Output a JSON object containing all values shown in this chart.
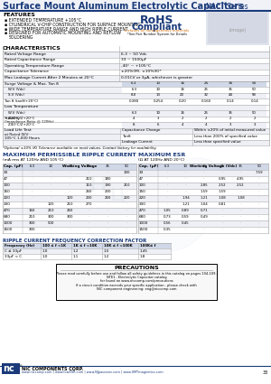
{
  "title": "Surface Mount Aluminum Electrolytic Capacitors",
  "series": "NACT Series",
  "bg_color": "#ffffff",
  "dark_blue": "#1a3a7a",
  "features_title": "FEATURES",
  "features": [
    "EXTENDED TEMPERATURE +105°C",
    "CYLINDRICAL V-CHIP CONSTRUCTION FOR SURFACE MOUNTING",
    "WIDE TEMPERATURE RANGE AND HIGH RIPPLE CURRENT",
    "DESIGNED FOR AUTOMATIC MOUNTING AND REFLOW",
    "SOLDERING"
  ],
  "rohs_line1": "RoHS",
  "rohs_line2": "Compliant",
  "rohs_sub1": "Includes all homogeneous materials",
  "rohs_sub2": "*See Part Number System for Details",
  "char_title": "CHARACTERISTICS",
  "char_rows": [
    [
      "Rated Voltage Range",
      "6.3 ~ 50 Vdc"
    ],
    [
      "Rated Capacitance Range",
      "33 ~ 1500μF"
    ],
    [
      "Operating Temperature Range",
      "-40° ~ +105°C"
    ],
    [
      "Capacitance Tolerance",
      "±20%(M), ±10%(K)*"
    ],
    [
      "Max Leakage Current After 2 Minutes at 20°C",
      "0.01CV or 3μA, whichever is greater"
    ]
  ],
  "surge_label": "Surge Voltage & Max. Tan δ",
  "wv_label": "W.V (Vdc)",
  "sv_label": "S.V (Vdc)",
  "tand_label": "Tan δ (tanδ/+20°C)",
  "voltage_cols": [
    "6.3",
    "10",
    "16",
    "25",
    "35",
    "50"
  ],
  "wv_vals": [
    "6.3",
    "10",
    "16",
    "25",
    "35",
    "50"
  ],
  "sv_vals": [
    "8.0",
    "13",
    "20",
    "32",
    "44",
    "58"
  ],
  "tand_vals": [
    "0.380",
    "0.254",
    "0.20",
    "0.160",
    "0.14",
    "0.14"
  ],
  "low_temp_label": "Low Temperature",
  "low_wv_label": "W.V (Vdc)",
  "low_wv_vals": [
    "6.3",
    "10",
    "16",
    "25",
    "35",
    "50"
  ],
  "stability_label": "Stability",
  "stability_sub": "(Impedance Ratio @ 120Hz)",
  "z20_label": "Z-20°C/Z+20°C",
  "z20_vals": [
    "4",
    "3",
    "2",
    "2",
    "2",
    "2"
  ],
  "z40_label": "Z-40°C/Z+20°C",
  "z40_vals": [
    "8",
    "6",
    "4",
    "4",
    "3",
    "3"
  ],
  "load_label": "Load Life Test",
  "load_sub1": "at Rated W.V",
  "load_sub2": "105°C 1,000 Hours",
  "load_rows": [
    [
      "Capacitance Change",
      "Within ±20% of initial measured value"
    ],
    [
      "Tanδ",
      "Less than 200% of specified value"
    ],
    [
      "Leakage Current",
      "Less than specified value"
    ]
  ],
  "optional_note": "*Optional ±10% (K) Tolerance available on most values. Contact factory for availability.",
  "ripple_title": "MAXIMUM PERMISSIBLE RIPPLE CURRENT",
  "ripple_sub": "(mA rms AT 120Hz AND 105°C)",
  "ripple_wv_header": "Working Voltage",
  "ripple_caps": [
    "Cap. (μF)",
    "33",
    "47",
    "100",
    "150",
    "220",
    "330",
    "470",
    "680",
    "1000",
    "1500"
  ],
  "ripple_wv_cols": [
    "6.3",
    "10",
    "16",
    "25",
    "35",
    "50"
  ],
  "ripple_data": [
    [
      "-",
      "-",
      "-",
      "-",
      "-",
      "100"
    ],
    [
      "-",
      "-",
      "-",
      "210",
      "180",
      "-"
    ],
    [
      "-",
      "-",
      "-",
      "110",
      "190",
      "210"
    ],
    [
      "-",
      "-",
      "-",
      "260",
      "230",
      "-"
    ],
    [
      "-",
      "-",
      "120",
      "200",
      "260",
      "220"
    ],
    [
      "-",
      "120",
      "210",
      "270",
      "-",
      "-"
    ],
    [
      "160",
      "210",
      "260",
      "-",
      "-",
      "-"
    ],
    [
      "210",
      "300",
      "300",
      "-",
      "-",
      "-"
    ],
    [
      "300",
      "500",
      "-",
      "-",
      "-",
      "-"
    ],
    [
      "300",
      "-",
      "-",
      "-",
      "-",
      "-"
    ]
  ],
  "esr_title": "MAXIMUM ESR",
  "esr_sub": "(Ω AT 120Hz AND 20°C)",
  "esr_wv_header": "Working Voltage (Vdc)",
  "esr_caps": [
    "Cap. (μF)",
    "33",
    "47",
    "100",
    "150",
    "220",
    "330",
    "470",
    "680",
    "1000",
    "1500"
  ],
  "esr_wv_cols": [
    "6.3",
    "10",
    "16",
    "25",
    "35",
    "50"
  ],
  "esr_data": [
    [
      "-",
      "-",
      "-",
      "-",
      "-",
      "7.59"
    ],
    [
      "-",
      "-",
      "-",
      "0.95",
      "4.95",
      "-"
    ],
    [
      "-",
      "-",
      "2.85",
      "2.52",
      "2.52",
      "-"
    ],
    [
      "-",
      "-",
      "1.59",
      "1.59",
      "-",
      "-"
    ],
    [
      "-",
      "1.94",
      "1.21",
      "1.08",
      "1.08",
      "-"
    ],
    [
      "-",
      "1.21",
      "1.04",
      "0.81",
      "-",
      "-"
    ],
    [
      "1.05",
      "0.89",
      "0.71",
      "-",
      "-",
      "-"
    ],
    [
      "0.73",
      "0.59",
      "0.49",
      "-",
      "-",
      "-"
    ],
    [
      "0.56",
      "0.45",
      "-",
      "-",
      "-",
      "-"
    ],
    [
      "0.35",
      "-",
      "-",
      "-",
      "-",
      "-"
    ]
  ],
  "freq_title": "RIPPLE CURRENT FREQUENCY CORRECTION FACTOR",
  "freq_cols": [
    "Frequency (Hz)",
    "100 ≤ f <1K",
    "1K ≤ f <10K",
    "10K ≤ f <100K",
    "100K≤ f"
  ],
  "freq_rows": [
    [
      "C ≤ 33μF",
      "1.0",
      "1.2",
      "1.5",
      "1.45"
    ],
    [
      "33μF < C",
      "1.0",
      "1.1",
      "1.2",
      "1.8"
    ]
  ],
  "prec_title": "PRECAUTIONS",
  "prec_lines": [
    "Please read carefully before use and follow all safety guidelines in this catalog on pages 104-109.",
    "NTE1 - Electrolytic Capacitor catalog",
    "for found on www.ntccomp.com/precautions",
    "If a circuit condition exceeds your specific application - please check with",
    "NIC component engineering: eng@niccomp.com"
  ],
  "footer_company": "NIC COMPONENTS CORP.",
  "footer_urls": "www.niccomp.com | www.lowESR.com | www.NJpassives.com | www.SMTmagnetics.com",
  "page_num": "33"
}
